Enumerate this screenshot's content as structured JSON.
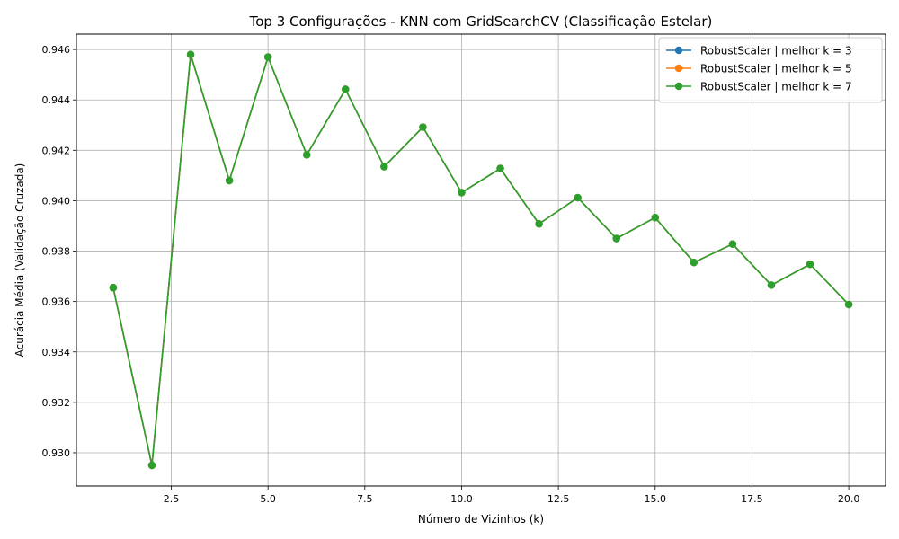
{
  "chart_data": {
    "type": "line",
    "title": "Top 3 Configurações - KNN com GridSearchCV (Classificação Estelar)",
    "xlabel": "Número de Vizinhos (k)",
    "ylabel": "Acurácia Média (Validação Cruzada)",
    "xlim": [
      0.05,
      20.95
    ],
    "ylim": [
      0.92868,
      0.94661
    ],
    "xticks": [
      2.5,
      5.0,
      7.5,
      10.0,
      12.5,
      15.0,
      17.5,
      20.0
    ],
    "xtick_labels": [
      "2.5",
      "5.0",
      "7.5",
      "10.0",
      "12.5",
      "15.0",
      "17.5",
      "20.0"
    ],
    "yticks": [
      0.93,
      0.932,
      0.934,
      0.936,
      0.938,
      0.94,
      0.942,
      0.944,
      0.946
    ],
    "ytick_labels": [
      "0.930",
      "0.932",
      "0.934",
      "0.936",
      "0.938",
      "0.940",
      "0.942",
      "0.944",
      "0.946"
    ],
    "grid": true,
    "legend_position": "top-right",
    "x": [
      1,
      2,
      3,
      4,
      5,
      6,
      7,
      8,
      9,
      10,
      11,
      12,
      13,
      14,
      15,
      16,
      17,
      18,
      19,
      20
    ],
    "series": [
      {
        "name": "RobustScaler | melhor k = 3",
        "color": "#1f77b4",
        "values": [
          0.93655,
          0.9295,
          0.9458,
          0.9408,
          0.9457,
          0.94182,
          0.94442,
          0.94135,
          0.94292,
          0.94032,
          0.94128,
          0.93908,
          0.94012,
          0.9385,
          0.93933,
          0.93755,
          0.93828,
          0.93665,
          0.93748,
          0.93588
        ]
      },
      {
        "name": "RobustScaler | melhor k = 5",
        "color": "#ff7f0e",
        "values": [
          0.93655,
          0.9295,
          0.9458,
          0.9408,
          0.9457,
          0.94182,
          0.94442,
          0.94135,
          0.94292,
          0.94032,
          0.94128,
          0.93908,
          0.94012,
          0.9385,
          0.93933,
          0.93755,
          0.93828,
          0.93665,
          0.93748,
          0.93588
        ]
      },
      {
        "name": "RobustScaler | melhor k = 7",
        "color": "#2ca02c",
        "values": [
          0.93655,
          0.9295,
          0.9458,
          0.9408,
          0.9457,
          0.94182,
          0.94442,
          0.94135,
          0.94292,
          0.94032,
          0.94128,
          0.93908,
          0.94012,
          0.9385,
          0.93933,
          0.93755,
          0.93828,
          0.93665,
          0.93748,
          0.93588
        ]
      }
    ]
  }
}
